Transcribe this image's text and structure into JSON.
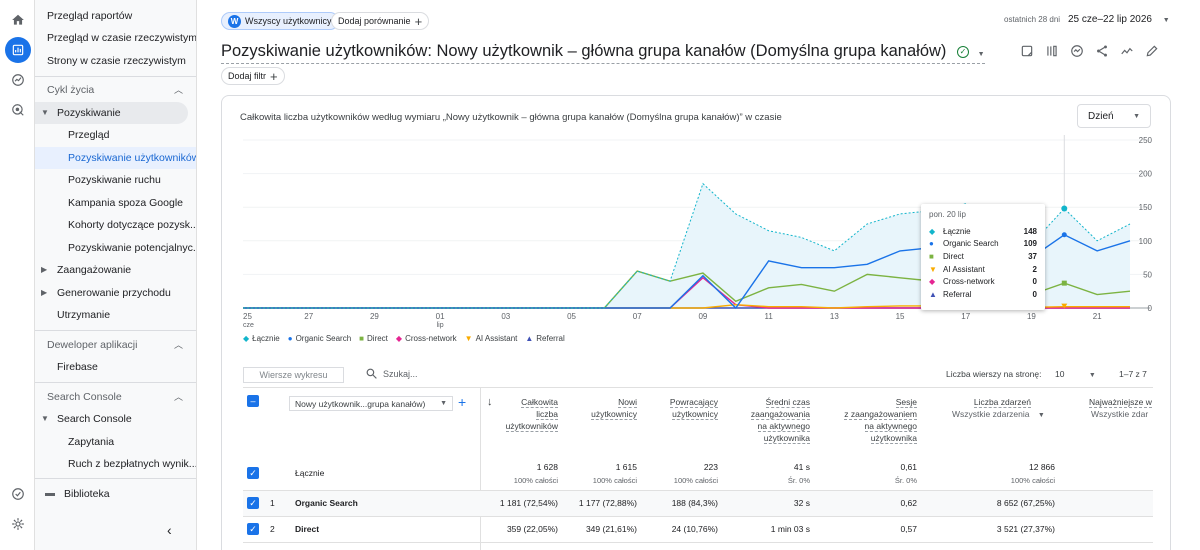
{
  "sidebar": {
    "reports": [
      "Przegląd raportów",
      "Przegląd w czasie rzeczywistym",
      "Strony w czasie rzeczywistym"
    ],
    "lifecycle_label": "Cykl życia",
    "acquisition_label": "Pozyskiwanie",
    "acquisition_items": [
      "Przegląd",
      "Pozyskiwanie użytkowników",
      "Pozyskiwanie ruchu",
      "Kampania spoza Google",
      "Kohorty dotyczące pozysk...",
      "Pozyskiwanie potencjalnyc..."
    ],
    "engagement_label": "Zaangażowanie",
    "monetization_label": "Generowanie przychodu",
    "retention_label": "Utrzymanie",
    "developer_label": "Deweloper aplikacji",
    "firebase_label": "Firebase",
    "search_console_section": "Search Console",
    "search_console_group": "Search Console",
    "queries_label": "Zapytania",
    "organic_label": "Ruch z bezpłatnych wynik...",
    "library_label": "Biblioteka"
  },
  "header": {
    "segment_avatar": "W",
    "segment_label": "Wszyscy użytkownicy",
    "compare_label": "Dodaj porównanie",
    "date_prefix": "ostatnich 28 dni",
    "date_range": "25 cze–22 lip 2026",
    "title": "Pozyskiwanie użytkowników: Nowy użytkownik – główna grupa kanałów (Domyślna grupa kanałów)",
    "filter_label": "Dodaj filtr"
  },
  "chart_card": {
    "title": "Całkowita liczba użytkowników według wymiaru „Nowy użytkownik – główna grupa kanałów (Domyślna grupa kanałów)” w czasie",
    "granularity": "Dzień"
  },
  "chart_data": {
    "type": "line",
    "x": [
      "25 cze",
      "26",
      "27",
      "28",
      "29",
      "30",
      "1 lip",
      "2",
      "3",
      "4",
      "5",
      "6",
      "7",
      "8",
      "9",
      "10",
      "11",
      "12",
      "13",
      "14",
      "15",
      "16",
      "17",
      "18",
      "19",
      "20",
      "21",
      "22"
    ],
    "x_tick_labels": [
      {
        "label": "25",
        "sub": "cze",
        "index": 0
      },
      {
        "label": "27",
        "sub": "",
        "index": 2
      },
      {
        "label": "29",
        "sub": "",
        "index": 4
      },
      {
        "label": "01",
        "sub": "lip",
        "index": 6
      },
      {
        "label": "03",
        "sub": "",
        "index": 8
      },
      {
        "label": "05",
        "sub": "",
        "index": 10
      },
      {
        "label": "07",
        "sub": "",
        "index": 12
      },
      {
        "label": "09",
        "sub": "",
        "index": 14
      },
      {
        "label": "11",
        "sub": "",
        "index": 16
      },
      {
        "label": "13",
        "sub": "",
        "index": 18
      },
      {
        "label": "15",
        "sub": "",
        "index": 20
      },
      {
        "label": "17",
        "sub": "",
        "index": 22
      },
      {
        "label": "19",
        "sub": "",
        "index": 24
      },
      {
        "label": "21",
        "sub": "",
        "index": 26
      }
    ],
    "y_ticks": [
      0,
      50,
      100,
      150,
      200,
      250
    ],
    "ylim": [
      0,
      250
    ],
    "series": [
      {
        "name": "Łącznie",
        "color": "#12b5cb",
        "values": [
          0,
          0,
          0,
          0,
          0,
          0,
          0,
          0,
          0,
          0,
          0,
          0,
          55,
          40,
          185,
          140,
          115,
          105,
          85,
          125,
          140,
          145,
          155,
          105,
          95,
          148,
          100,
          125
        ]
      },
      {
        "name": "Organic Search",
        "color": "#1a73e8",
        "values": [
          0,
          0,
          0,
          0,
          0,
          0,
          0,
          0,
          0,
          0,
          0,
          0,
          0,
          0,
          48,
          0,
          70,
          60,
          60,
          65,
          85,
          90,
          120,
          85,
          75,
          109,
          85,
          100
        ]
      },
      {
        "name": "Direct",
        "color": "#7cb342",
        "values": [
          0,
          0,
          0,
          0,
          0,
          0,
          0,
          0,
          0,
          0,
          0,
          0,
          55,
          40,
          52,
          10,
          30,
          35,
          25,
          50,
          45,
          40,
          40,
          25,
          20,
          37,
          20,
          25
        ]
      },
      {
        "name": "AI Assistant",
        "color": "#f9ab00",
        "values": [
          0,
          0,
          0,
          0,
          0,
          0,
          0,
          0,
          0,
          0,
          0,
          0,
          0,
          0,
          0,
          5,
          2,
          2,
          0,
          2,
          3,
          3,
          2,
          2,
          1,
          2,
          2,
          2
        ]
      },
      {
        "name": "Cross-network",
        "color": "#e52592",
        "values": [
          0,
          0,
          0,
          0,
          0,
          0,
          0,
          0,
          0,
          0,
          0,
          0,
          0,
          0,
          45,
          5,
          0,
          0,
          0,
          0,
          0,
          0,
          0,
          0,
          0,
          0,
          0,
          0
        ]
      },
      {
        "name": "Referral",
        "color": "#3f51b5",
        "values": [
          0,
          0,
          0,
          0,
          0,
          0,
          0,
          0,
          0,
          0,
          0,
          0,
          0,
          0,
          0,
          0,
          0,
          0,
          0,
          0,
          0,
          0,
          0,
          0,
          0,
          0,
          0,
          0
        ]
      }
    ],
    "tooltip": {
      "date": "pon. 20 lip",
      "rows": [
        {
          "name": "Łącznie",
          "value": "148",
          "marker": "◆",
          "color": "#12b5cb"
        },
        {
          "name": "Organic Search",
          "value": "109",
          "marker": "●",
          "color": "#1a73e8"
        },
        {
          "name": "Direct",
          "value": "37",
          "marker": "■",
          "color": "#7cb342"
        },
        {
          "name": "AI Assistant",
          "value": "2",
          "marker": "▼",
          "color": "#f9ab00"
        },
        {
          "name": "Cross-network",
          "value": "0",
          "marker": "◆",
          "color": "#e52592"
        },
        {
          "name": "Referral",
          "value": "0",
          "marker": "▲",
          "color": "#3f51b5"
        }
      ]
    },
    "legend": [
      {
        "name": "Łącznie",
        "marker": "◆",
        "color": "#12b5cb"
      },
      {
        "name": "Organic Search",
        "marker": "●",
        "color": "#1a73e8"
      },
      {
        "name": "Direct",
        "marker": "■",
        "color": "#7cb342"
      },
      {
        "name": "Cross-network",
        "marker": "◆",
        "color": "#e52592"
      },
      {
        "name": "AI Assistant",
        "marker": "▼",
        "color": "#f9ab00"
      },
      {
        "name": "Referral",
        "marker": "▲",
        "color": "#3f51b5"
      }
    ]
  },
  "table": {
    "plot_rows_label": "Wiersze wykresu",
    "search_placeholder": "Szukaj...",
    "rows_per_page_label": "Liczba wierszy na stronę:",
    "rows_per_page": "10",
    "pagination": "1–7 z 7",
    "dimension_select": "Nowy użytkownik...grupa kanałów)",
    "headers": [
      "Całkowita\nliczba\nużytkowników",
      "Nowi\nużytkownicy",
      "Powracający\nużytkownicy",
      "Średni czas\nzaangażowania\nna aktywnego\nużytkownika",
      "Sesje\nz zaangażowaniem\nna aktywnego\nużytkownika",
      "Liczba zdarzeń",
      "Najważniejsze w"
    ],
    "events_filter": "Wszystkie zdarzenia",
    "last_filter": "Wszystkie zdar",
    "total_label": "Łącznie",
    "totals": [
      "1 628",
      "1 615",
      "223",
      "41 s",
      "0,61",
      "12 866"
    ],
    "totals_sub": [
      "100% całości",
      "100% całości",
      "100% całości",
      "Śr. 0%",
      "Śr. 0%",
      "100% całości"
    ],
    "rows": [
      {
        "num": "1",
        "name": "Organic Search",
        "values": [
          "1 181 (72,54%)",
          "1 177 (72,88%)",
          "188 (84,3%)",
          "32 s",
          "0,62",
          "8 652 (67,25%)"
        ]
      },
      {
        "num": "2",
        "name": "Direct",
        "values": [
          "359 (22,05%)",
          "349 (21,61%)",
          "24 (10,76%)",
          "1 min 03 s",
          "0,57",
          "3 521 (27,37%)"
        ]
      }
    ]
  }
}
